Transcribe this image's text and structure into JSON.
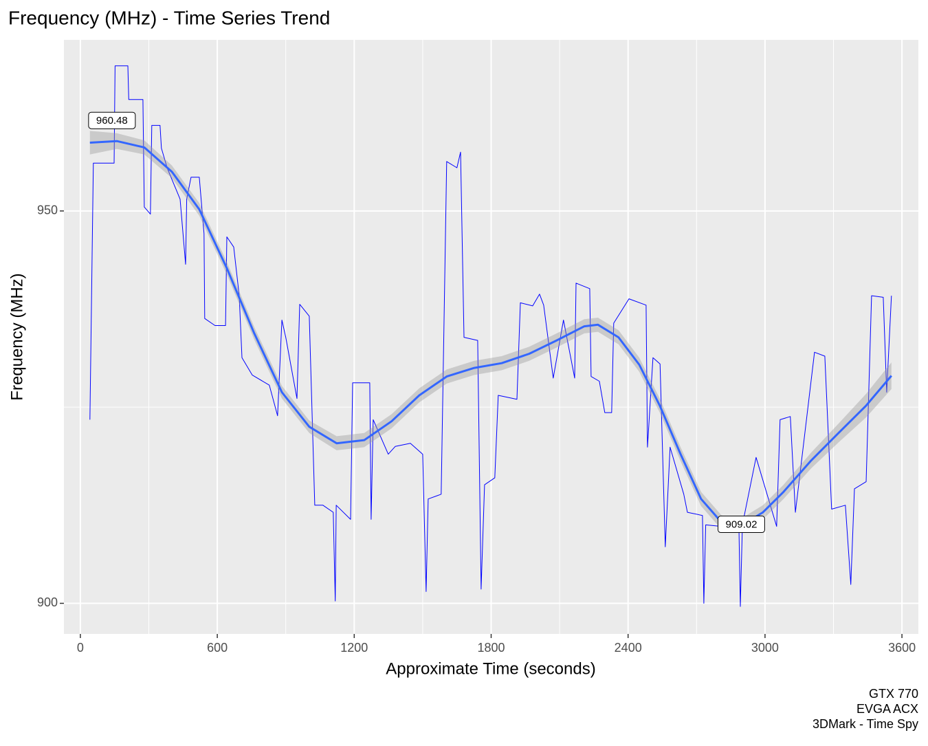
{
  "chart_data": {
    "type": "line",
    "title": "Frequency (MHz) - Time Series Trend",
    "x_label": "Approximate Time (seconds)",
    "y_label": "Frequency (MHz)",
    "caption": [
      "GTX 770",
      "EVGA ACX",
      "3DMark - Time Spy"
    ],
    "xlim": [
      -72,
      3672
    ],
    "ylim": [
      896.1,
      971.8
    ],
    "xticks": [
      0,
      600,
      1200,
      1800,
      2400,
      3000,
      3600
    ],
    "yticks": [
      900,
      950
    ],
    "x_minor_ticks": [
      300,
      900,
      1500,
      2100,
      2700,
      3300
    ],
    "y_minor_ticks": [
      925
    ],
    "grid": true,
    "series": [
      {
        "color": "#0000ff",
        "x": [
          42,
          57,
          148,
          152,
          208,
          212,
          274,
          280,
          307,
          313,
          349,
          355,
          380,
          437,
          461,
          466,
          485,
          521,
          542,
          545,
          590,
          636,
          642,
          672,
          696,
          708,
          753,
          828,
          864,
          883,
          900,
          949,
          961,
          1003,
          1027,
          1063,
          1108,
          1117,
          1121,
          1184,
          1193,
          1268,
          1274,
          1283,
          1349,
          1380,
          1446,
          1500,
          1515,
          1524,
          1581,
          1605,
          1650,
          1666,
          1681,
          1741,
          1756,
          1771,
          1816,
          1831,
          1913,
          1928,
          1982,
          2012,
          2030,
          2072,
          2117,
          2166,
          2172,
          2232,
          2238,
          2274,
          2298,
          2328,
          2337,
          2404,
          2479,
          2485,
          2509,
          2540,
          2563,
          2584,
          2644,
          2660,
          2726,
          2732,
          2740,
          2810,
          2886,
          2892,
          2901,
          2961,
          3051,
          3066,
          3111,
          3133,
          3217,
          3262,
          3292,
          3352,
          3376,
          3392,
          3443,
          3467,
          3518,
          3533,
          3554
        ],
        "values": [
          923.4,
          956.1,
          956.1,
          968.5,
          968.5,
          964.2,
          964.2,
          950.5,
          949.6,
          960.9,
          960.9,
          958,
          955.5,
          951.5,
          943.2,
          951.5,
          954.3,
          954.3,
          947.1,
          936.3,
          935.4,
          935.4,
          946.7,
          945.4,
          939.2,
          931.3,
          929.1,
          927.8,
          923.9,
          936.1,
          933.9,
          926.1,
          938.1,
          936.6,
          912.5,
          912.5,
          911.6,
          900.3,
          912.5,
          910.7,
          928.1,
          928.1,
          910.7,
          923.4,
          919,
          920,
          920.4,
          919,
          901.5,
          913.3,
          913.9,
          956.3,
          955.5,
          957.5,
          933.9,
          933.5,
          901.8,
          915.1,
          916,
          926.5,
          926,
          938.3,
          937.9,
          939.4,
          938,
          928.7,
          936.1,
          928.7,
          940.8,
          940.1,
          928.9,
          928.3,
          924.3,
          924.3,
          935.7,
          938.8,
          938,
          919.9,
          931.3,
          930.5,
          907.2,
          919.9,
          913.9,
          911.6,
          911.2,
          900,
          910,
          909.8,
          909.4,
          899.6,
          910,
          918.6,
          909.8,
          923.4,
          923.8,
          911.6,
          932,
          931.5,
          912,
          912.5,
          902.4,
          914.6,
          915.5,
          939.2,
          939,
          926.9,
          939.2
        ]
      },
      {
        "color": "#3366ff",
        "smooth": true,
        "band_color": "#999999",
        "x": [
          42,
          160,
          280,
          401,
          521,
          642,
          762,
          883,
          1003,
          1123,
          1244,
          1364,
          1485,
          1605,
          1726,
          1846,
          1967,
          2087,
          2208,
          2268,
          2358,
          2449,
          2539,
          2630,
          2720,
          2810,
          2901,
          2991,
          3081,
          3202,
          3322,
          3443,
          3554
        ],
        "values": [
          958.7,
          958.9,
          958.1,
          955,
          950.2,
          942.7,
          934.4,
          926.9,
          922.5,
          920.4,
          920.8,
          923.2,
          926.5,
          928.9,
          930,
          930.6,
          931.8,
          933.5,
          935.3,
          935.5,
          933.9,
          930.4,
          925.2,
          919,
          913.3,
          910.3,
          910,
          911.6,
          914.2,
          918.2,
          921.7,
          925.2,
          929
        ],
        "lower": [
          957.2,
          957.9,
          957.2,
          954.2,
          949.4,
          941.9,
          933.6,
          926.1,
          921.7,
          919.5,
          919.9,
          922.3,
          925.6,
          928,
          929.1,
          929.7,
          930.9,
          932.6,
          934.4,
          934.6,
          933,
          929.5,
          924.3,
          918.1,
          912.4,
          909.4,
          909.1,
          910.7,
          913.3,
          917.2,
          920.5,
          923.7,
          927.3
        ],
        "upper": [
          960.2,
          959.9,
          959,
          955.8,
          951,
          943.5,
          935.2,
          927.7,
          923.3,
          921.3,
          921.7,
          924.1,
          927.4,
          929.8,
          930.9,
          931.5,
          932.7,
          934.4,
          936.2,
          936.4,
          934.8,
          931.3,
          926.1,
          919.9,
          914.2,
          911.2,
          910.9,
          912.5,
          915.1,
          919.2,
          922.9,
          926.7,
          930.7
        ]
      }
    ],
    "annotations": [
      {
        "x": 42,
        "y": 960.48
      },
      {
        "x": 2800,
        "y": 909.02
      }
    ]
  }
}
